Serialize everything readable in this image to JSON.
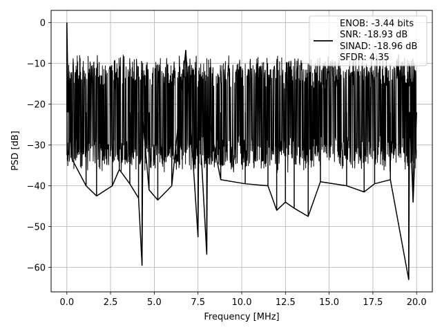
{
  "chart_data": {
    "type": "line",
    "xlabel": "Frequency [MHz]",
    "ylabel": "PSD [dB]",
    "xlim": [
      -0.9,
      20.9
    ],
    "ylim": [
      -66,
      3
    ],
    "xticks": [
      0.0,
      2.5,
      5.0,
      7.5,
      10.0,
      12.5,
      15.0,
      17.5,
      20.0
    ],
    "xtick_labels": [
      "0.0",
      "2.5",
      "5.0",
      "7.5",
      "10.0",
      "12.5",
      "15.0",
      "17.5",
      "20.0"
    ],
    "yticks": [
      0,
      -10,
      -20,
      -30,
      -40,
      -50,
      -60
    ],
    "ytick_labels": [
      "0",
      "−10",
      "−20",
      "−30",
      "−40",
      "−50",
      "−60"
    ],
    "grid": true,
    "legend_position": "top-right",
    "legend_lines": [
      "ENOB: -3.44 bits",
      "SNR: -18.93 dB",
      "SINAD: -18.96 dB",
      "SFDR: 4.35"
    ],
    "series_color": "#000000",
    "series": [
      {
        "x": [
          0.0,
          0.02,
          0.05,
          0.08,
          0.12,
          0.2,
          0.3,
          1.1,
          1.7,
          2.6,
          3.0,
          3.6,
          4.1,
          4.3,
          4.35,
          4.7,
          5.2,
          6.0,
          6.8,
          7.5,
          7.55,
          8.0,
          8.05,
          8.8,
          10.2,
          11.5,
          12.0,
          12.5,
          13.0,
          13.8,
          14.5,
          16.0,
          17.0,
          17.6,
          18.5,
          19.55,
          19.6,
          19.8,
          20.0
        ],
        "y": [
          0.0,
          -5.0,
          -14.0,
          -21.0,
          -12.0,
          -28.0,
          -33.5,
          -40.0,
          -42.5,
          -40.0,
          -36.0,
          -39.5,
          -43.0,
          -59.5,
          -24.0,
          -41.0,
          -43.5,
          -40.0,
          -6.8,
          -52.5,
          -22.0,
          -56.8,
          -22.0,
          -38.5,
          -39.5,
          -40.0,
          -46.0,
          -44.0,
          -45.5,
          -47.5,
          -39.0,
          -40.0,
          -41.5,
          -39.5,
          -38.5,
          -63.0,
          -22.0,
          -44.0,
          -22.0
        ]
      }
    ]
  }
}
